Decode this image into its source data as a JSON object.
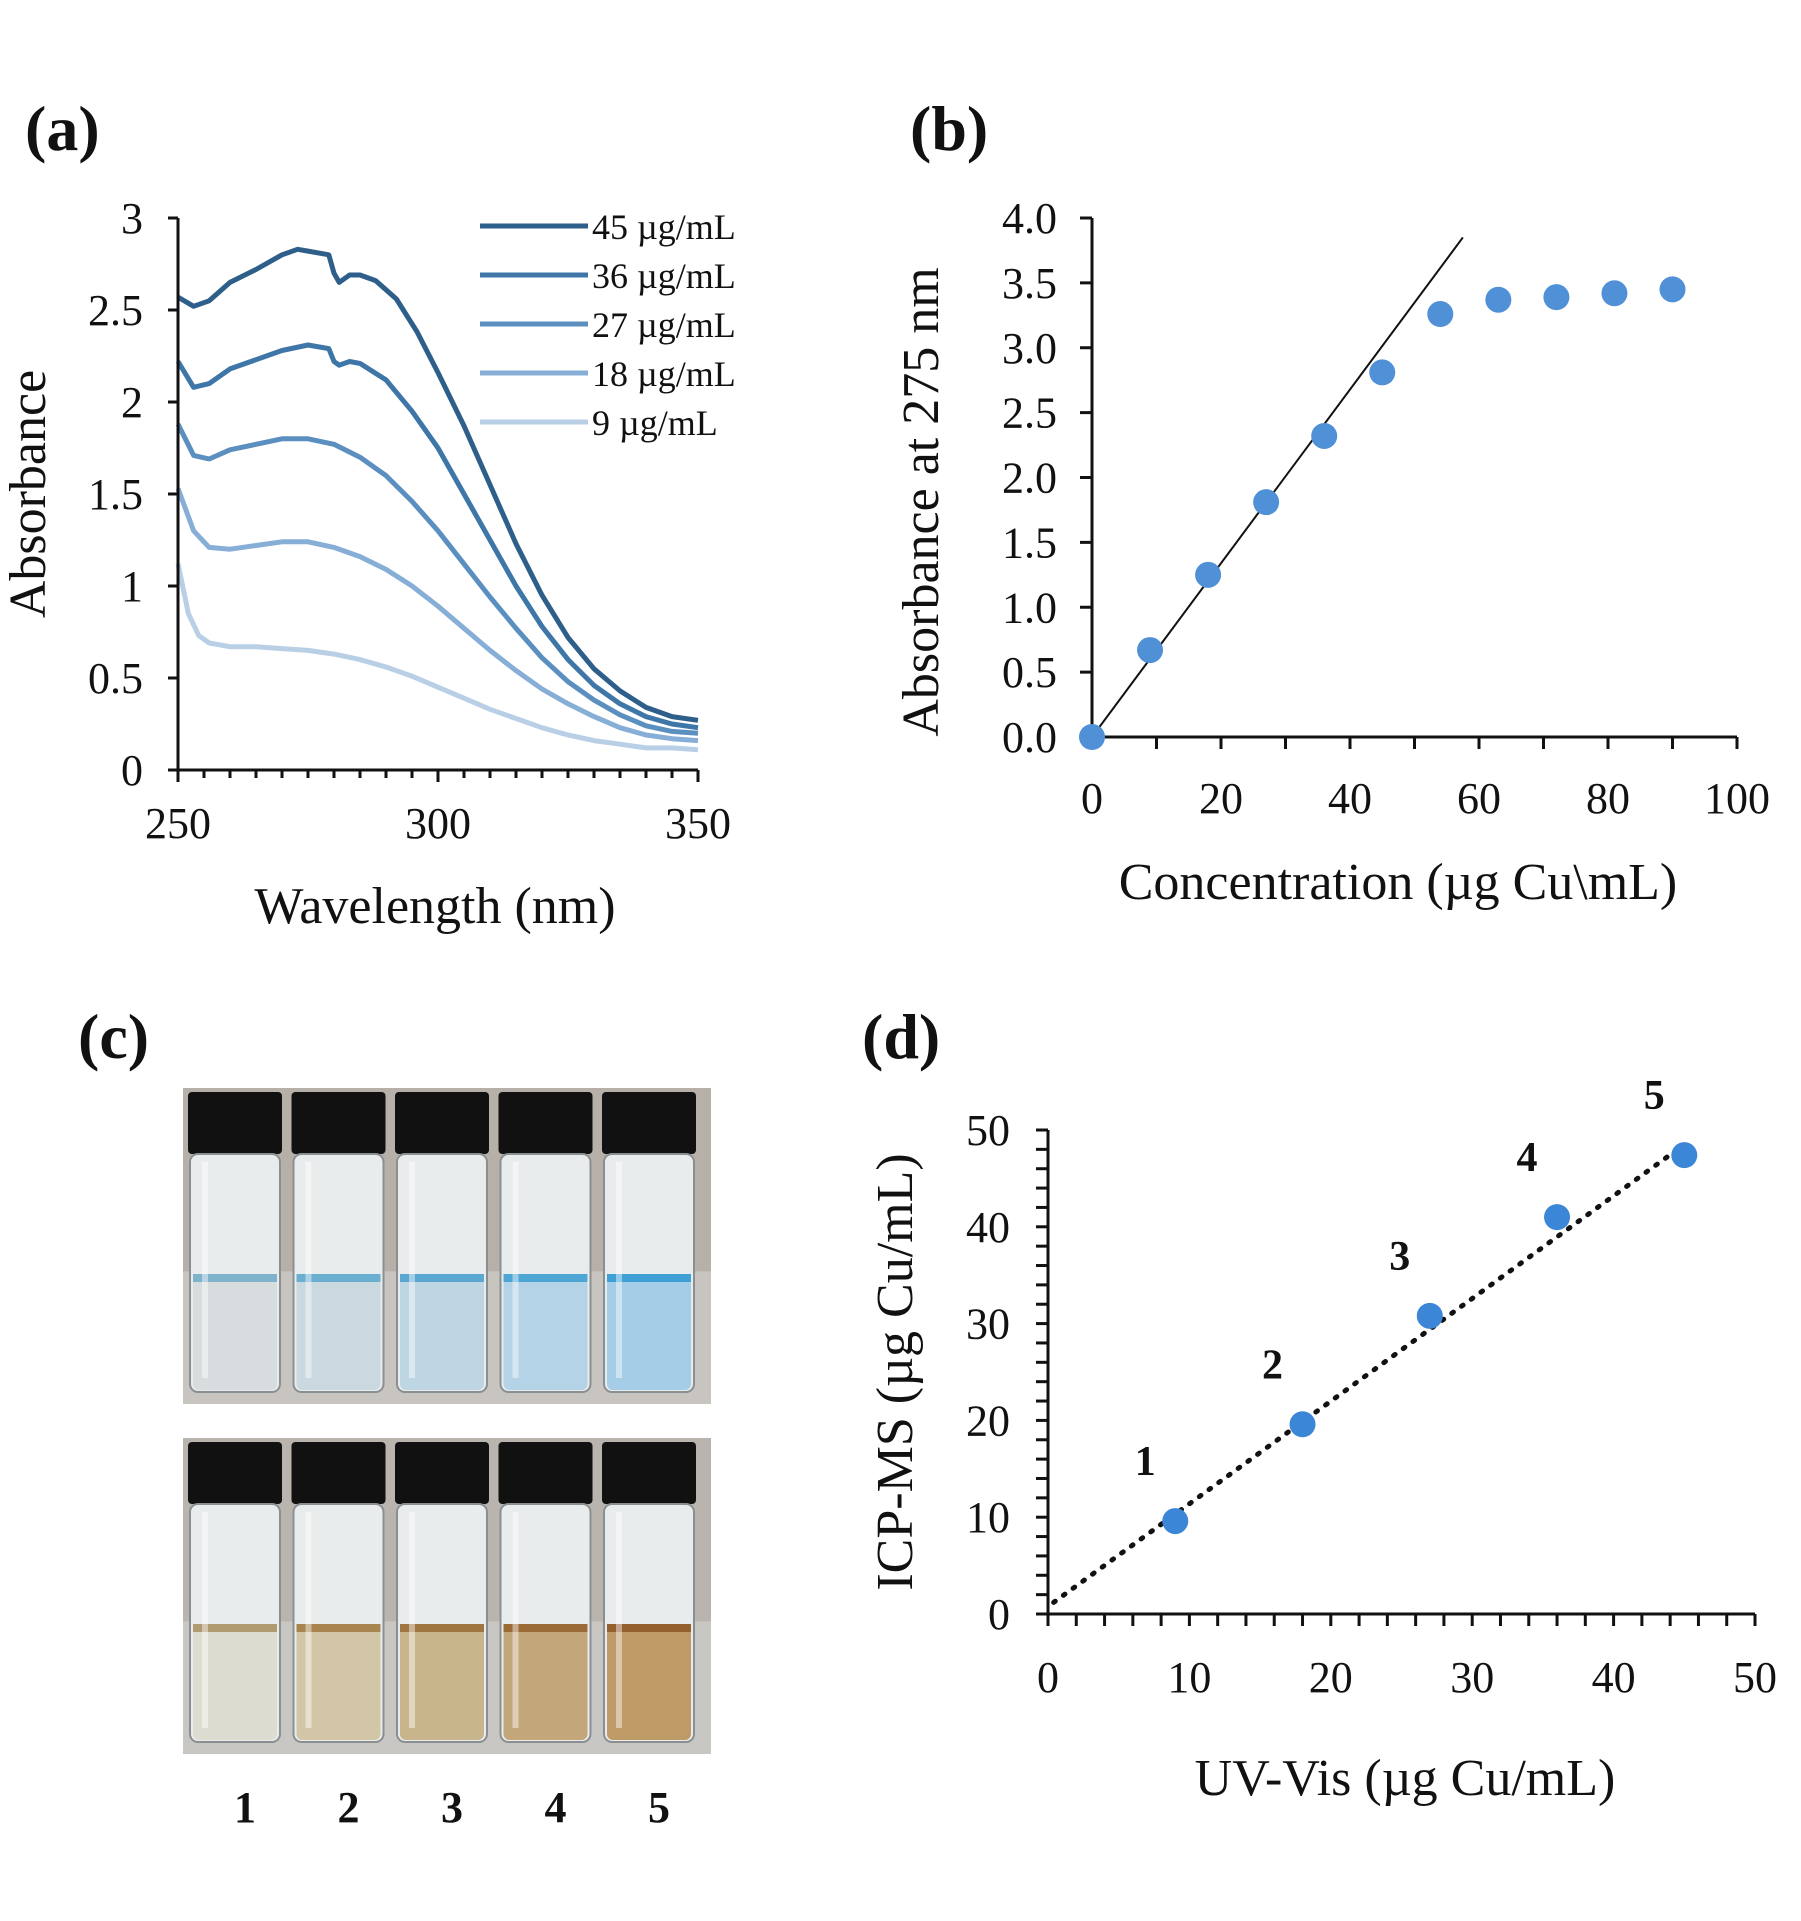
{
  "panels": {
    "a": "(a)",
    "b": "(b)",
    "c": "(c)",
    "d": "(d)"
  },
  "colors": {
    "c45": "#2e5e8a",
    "c36": "#3e76a8",
    "c27": "#5a8fc0",
    "c18": "#87aed6",
    "c9": "#b9cfe6",
    "points": "#4f90d6",
    "points_d": "#3b86d6"
  },
  "chart_data": [
    {
      "type": "line",
      "xlabel": "Wavelength (nm)",
      "ylabel": "Absorbance",
      "xlim": [
        250,
        350
      ],
      "ylim": [
        0,
        3
      ],
      "xticks": [
        "250",
        "300",
        "350"
      ],
      "yticks": [
        "0",
        "0.5",
        "1",
        "1.5",
        "2",
        "2.5",
        "3"
      ],
      "legend_position": "top-right",
      "series": [
        {
          "name": "45 µg/mL",
          "color_key": "c45",
          "x": [
            250,
            253,
            256,
            260,
            265,
            270,
            273,
            275,
            279,
            280,
            281,
            283,
            285,
            288,
            292,
            296,
            300,
            305,
            310,
            315,
            320,
            325,
            330,
            335,
            340,
            345,
            350
          ],
          "y": [
            2.57,
            2.52,
            2.55,
            2.65,
            2.72,
            2.8,
            2.83,
            2.82,
            2.8,
            2.7,
            2.65,
            2.69,
            2.69,
            2.66,
            2.56,
            2.38,
            2.16,
            1.87,
            1.55,
            1.23,
            0.95,
            0.72,
            0.55,
            0.43,
            0.34,
            0.29,
            0.27
          ]
        },
        {
          "name": "36 µg/mL",
          "color_key": "c36",
          "x": [
            250,
            253,
            256,
            260,
            265,
            270,
            275,
            279,
            280,
            281,
            283,
            285,
            290,
            295,
            300,
            305,
            310,
            315,
            320,
            325,
            330,
            335,
            340,
            345,
            350
          ],
          "y": [
            2.22,
            2.08,
            2.1,
            2.18,
            2.23,
            2.28,
            2.31,
            2.29,
            2.22,
            2.2,
            2.22,
            2.21,
            2.12,
            1.95,
            1.75,
            1.5,
            1.25,
            1.0,
            0.78,
            0.6,
            0.46,
            0.36,
            0.29,
            0.25,
            0.23
          ]
        },
        {
          "name": "27 µg/mL",
          "color_key": "c27",
          "x": [
            250,
            253,
            256,
            260,
            265,
            270,
            275,
            280,
            285,
            290,
            295,
            300,
            305,
            310,
            315,
            320,
            325,
            330,
            335,
            340,
            345,
            350
          ],
          "y": [
            1.88,
            1.71,
            1.69,
            1.74,
            1.77,
            1.8,
            1.8,
            1.77,
            1.7,
            1.6,
            1.46,
            1.3,
            1.12,
            0.94,
            0.77,
            0.61,
            0.48,
            0.38,
            0.3,
            0.24,
            0.21,
            0.2
          ]
        },
        {
          "name": "18 µg/mL",
          "color_key": "c18",
          "x": [
            250,
            253,
            256,
            260,
            265,
            270,
            275,
            280,
            285,
            290,
            295,
            300,
            305,
            310,
            315,
            320,
            325,
            330,
            335,
            340,
            345,
            350
          ],
          "y": [
            1.53,
            1.3,
            1.21,
            1.2,
            1.22,
            1.24,
            1.24,
            1.21,
            1.16,
            1.09,
            1.0,
            0.89,
            0.77,
            0.65,
            0.54,
            0.44,
            0.36,
            0.29,
            0.23,
            0.19,
            0.17,
            0.16
          ]
        },
        {
          "name": "9 µg/mL",
          "color_key": "c9",
          "x": [
            250,
            252,
            254,
            256,
            260,
            265,
            270,
            275,
            280,
            285,
            290,
            295,
            300,
            305,
            310,
            315,
            320,
            325,
            330,
            335,
            340,
            345,
            350
          ],
          "y": [
            1.12,
            0.85,
            0.73,
            0.69,
            0.67,
            0.67,
            0.66,
            0.65,
            0.63,
            0.6,
            0.56,
            0.51,
            0.45,
            0.39,
            0.33,
            0.28,
            0.23,
            0.19,
            0.16,
            0.14,
            0.12,
            0.12,
            0.11
          ]
        }
      ]
    },
    {
      "type": "scatter",
      "xlabel": "Concentration (µg Cu\\mL)",
      "ylabel": "Absorbance at 275 nm",
      "xlim": [
        0,
        100
      ],
      "ylim": [
        0,
        4
      ],
      "xticks": [
        "0",
        "20",
        "40",
        "60",
        "80",
        "100"
      ],
      "yticks": [
        "0.0",
        "0.5",
        "1.0",
        "1.5",
        "2.0",
        "2.5",
        "3.0",
        "3.5",
        "4.0"
      ],
      "series": [
        {
          "x": [
            0,
            9,
            18,
            27,
            36,
            45,
            54,
            63,
            72,
            81,
            90
          ],
          "y": [
            0.0,
            0.67,
            1.25,
            1.81,
            2.32,
            2.81,
            3.26,
            3.37,
            3.39,
            3.42,
            3.45
          ]
        }
      ],
      "trendline": {
        "x": [
          0,
          57.5
        ],
        "y": [
          0,
          3.85
        ]
      }
    },
    {
      "type": "scatter",
      "xlabel": "UV-Vis (µg Cu/mL)",
      "ylabel": "ICP-MS (µg Cu/mL)",
      "xlim": [
        0,
        50
      ],
      "ylim": [
        0,
        50
      ],
      "xticks": [
        "0",
        "10",
        "20",
        "30",
        "40",
        "50"
      ],
      "yticks": [
        "0",
        "10",
        "20",
        "30",
        "40",
        "50"
      ],
      "series": [
        {
          "x": [
            9,
            18,
            27,
            36,
            45
          ],
          "y": [
            9.6,
            19.6,
            30.8,
            41.0,
            47.4
          ],
          "labels": [
            "1",
            "2",
            "3",
            "4",
            "5"
          ]
        }
      ],
      "trendline": {
        "x": [
          0.4,
          45
        ],
        "y": [
          1.2,
          48.5
        ],
        "style": "dotted"
      }
    }
  ],
  "vials": {
    "labels": [
      "1",
      "2",
      "3",
      "4",
      "5"
    ],
    "top_liquid_colors": [
      "#d7dcdf",
      "#cad8e0",
      "#bed6e3",
      "#b4d3e6",
      "#a6cde8"
    ],
    "top_meniscus_colors": [
      "#7fb3cc",
      "#6aaed0",
      "#5aa8d2",
      "#4ea6d5",
      "#3fa0d6"
    ],
    "bottom_liquid_colors": [
      "#dcdcd0",
      "#d2c6a6",
      "#c9b58c",
      "#c3a77a",
      "#bd9a66"
    ],
    "bottom_meniscus_colors": [
      "#b09a70",
      "#a8844e",
      "#9f7540",
      "#9a6a36",
      "#93602e"
    ]
  }
}
